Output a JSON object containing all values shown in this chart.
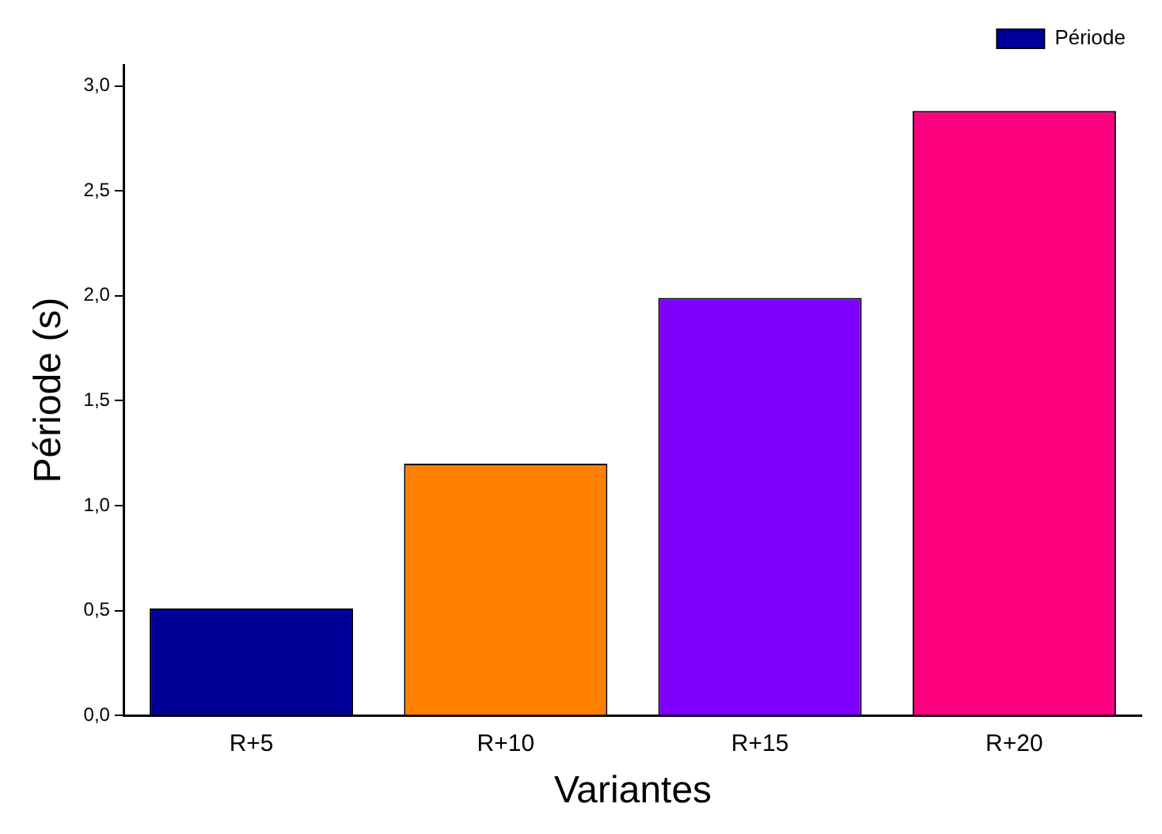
{
  "chart_data": {
    "type": "bar",
    "xlabel": "Variantes",
    "ylabel": "Période (s)",
    "categories": [
      "R+5",
      "R+10",
      "R+15",
      "R+20"
    ],
    "series": [
      {
        "name": "Période",
        "colors": [
          "#000099",
          "#ff8000",
          "#8000ff",
          "#ff0080"
        ],
        "values": [
          0.51,
          1.2,
          1.99,
          2.88
        ]
      }
    ],
    "ylim": [
      0,
      3.1
    ],
    "yticks": [
      {
        "value": 0,
        "label": "0,0"
      },
      {
        "value": 0.5,
        "label": "0,5"
      },
      {
        "value": 1,
        "label": "1,0"
      },
      {
        "value": 1.5,
        "label": "1,5"
      },
      {
        "value": 2,
        "label": "2,0"
      },
      {
        "value": 2.5,
        "label": "2,5"
      },
      {
        "value": 3,
        "label": "3,0"
      }
    ],
    "grid": false,
    "legend": "top right"
  }
}
